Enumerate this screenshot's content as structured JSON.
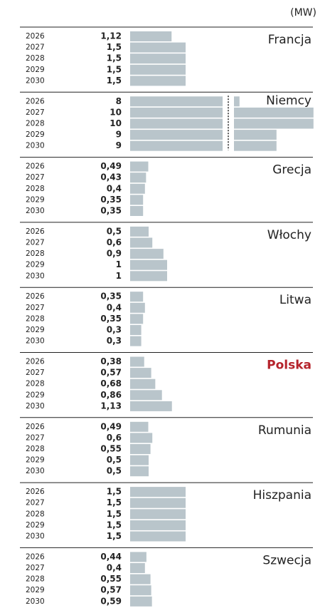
{
  "unit": "(MW)",
  "chart_data": [
    {
      "type": "bar",
      "title": "Francja",
      "categories": [
        "2026",
        "2027",
        "2028",
        "2029",
        "2030"
      ],
      "values": [
        1.12,
        1.5,
        1.5,
        1.5,
        1.5
      ],
      "value_labels": [
        "1,12",
        "1,5",
        "1,5",
        "1,5",
        "1,5"
      ],
      "xlim": [
        0,
        1.5
      ],
      "color": "#b9c5cb"
    },
    {
      "type": "bar",
      "title": "Niemcy",
      "categories": [
        "2026",
        "2027",
        "2028",
        "2029",
        "2030"
      ],
      "values": [
        8,
        10,
        10,
        9,
        9
      ],
      "value_labels": [
        "8",
        "10",
        "10",
        "9",
        "9"
      ],
      "xlim": [
        0,
        10
      ],
      "axis_break": [
        2.5,
        7.85
      ],
      "color": "#b9c5cb"
    },
    {
      "type": "bar",
      "title": "Grecja",
      "categories": [
        "2026",
        "2027",
        "2028",
        "2029",
        "2030"
      ],
      "values": [
        0.49,
        0.43,
        0.4,
        0.35,
        0.35
      ],
      "value_labels": [
        "0,49",
        "0,43",
        "0,4",
        "0,35",
        "0,35"
      ],
      "xlim": [
        0,
        1.5
      ],
      "color": "#b9c5cb"
    },
    {
      "type": "bar",
      "title": "Włochy",
      "categories": [
        "2026",
        "2027",
        "2028",
        "2029",
        "2030"
      ],
      "values": [
        0.5,
        0.6,
        0.9,
        1,
        1
      ],
      "value_labels": [
        "0,5",
        "0,6",
        "0,9",
        "1",
        "1"
      ],
      "xlim": [
        0,
        1.5
      ],
      "color": "#b9c5cb"
    },
    {
      "type": "bar",
      "title": "Litwa",
      "categories": [
        "2026",
        "2027",
        "2028",
        "2029",
        "2030"
      ],
      "values": [
        0.35,
        0.4,
        0.35,
        0.3,
        0.3
      ],
      "value_labels": [
        "0,35",
        "0,4",
        "0,35",
        "0,3",
        "0,3"
      ],
      "xlim": [
        0,
        1.5
      ],
      "color": "#b9c5cb"
    },
    {
      "type": "bar",
      "title": "Polska",
      "title_color": "#b5232b",
      "categories": [
        "2026",
        "2027",
        "2028",
        "2029",
        "2030"
      ],
      "values": [
        0.38,
        0.57,
        0.68,
        0.86,
        1.13
      ],
      "value_labels": [
        "0,38",
        "0,57",
        "0,68",
        "0,86",
        "1,13"
      ],
      "xlim": [
        0,
        1.5
      ],
      "color": "#b9c5cb"
    },
    {
      "type": "bar",
      "title": "Rumunia",
      "categories": [
        "2026",
        "2027",
        "2028",
        "2029",
        "2030"
      ],
      "values": [
        0.49,
        0.6,
        0.55,
        0.5,
        0.5
      ],
      "value_labels": [
        "0,49",
        "0,6",
        "0,55",
        "0,5",
        "0,5"
      ],
      "xlim": [
        0,
        1.5
      ],
      "color": "#b9c5cb"
    },
    {
      "type": "bar",
      "title": "Hiszpania",
      "categories": [
        "2026",
        "2027",
        "2028",
        "2029",
        "2030"
      ],
      "values": [
        1.5,
        1.5,
        1.5,
        1.5,
        1.5
      ],
      "value_labels": [
        "1,5",
        "1,5",
        "1,5",
        "1,5",
        "1,5"
      ],
      "xlim": [
        0,
        1.5
      ],
      "color": "#b9c5cb"
    },
    {
      "type": "bar",
      "title": "Szwecja",
      "categories": [
        "2026",
        "2027",
        "2028",
        "2029",
        "2030"
      ],
      "values": [
        0.44,
        0.4,
        0.55,
        0.57,
        0.59
      ],
      "value_labels": [
        "0,44",
        "0,4",
        "0,55",
        "0,57",
        "0,59"
      ],
      "xlim": [
        0,
        1.5
      ],
      "color": "#b9c5cb"
    }
  ]
}
